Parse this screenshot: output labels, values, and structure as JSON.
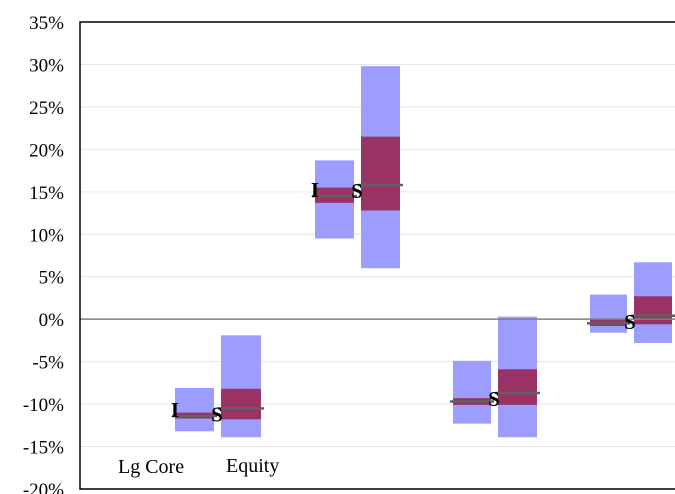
{
  "chart_data": {
    "type": "box",
    "title": "",
    "xlabel": "",
    "ylabel": "",
    "ylim": [
      -0.2,
      0.35
    ],
    "y_ticks": [
      "35%",
      "30%",
      "25%",
      "20%",
      "15%",
      "10%",
      "5%",
      "0%",
      "-5%",
      "-10%",
      "-15%",
      "-20%"
    ],
    "y_tick_values": [
      0.35,
      0.3,
      0.25,
      0.2,
      0.15,
      0.1,
      0.05,
      0.0,
      -0.05,
      -0.1,
      -0.15,
      -0.2
    ],
    "grid": true,
    "annotations": [
      "Lg Core",
      "Equity"
    ],
    "colors": {
      "outer": "#9d9dff",
      "inner": "#993366",
      "median": "#606060",
      "zero": "#808080"
    },
    "groups": [
      {
        "boxes": [
          {
            "outer": [
              -0.132,
              -0.081
            ],
            "inner": [
              -0.117,
              -0.11
            ],
            "median": -0.114,
            "marker": "I"
          },
          {
            "outer": [
              -0.139,
              -0.019
            ],
            "inner": [
              -0.118,
              -0.082
            ],
            "median": -0.105,
            "marker": "S"
          }
        ]
      },
      {
        "boxes": [
          {
            "outer": [
              0.095,
              0.187
            ],
            "inner": [
              0.137,
              0.155
            ],
            "median": 0.145,
            "marker": "I"
          },
          {
            "outer": [
              0.06,
              0.298
            ],
            "inner": [
              0.128,
              0.215
            ],
            "median": 0.158,
            "marker": "S"
          }
        ]
      },
      {
        "boxes": [
          {
            "outer": [
              -0.123,
              -0.049
            ],
            "inner": [
              -0.101,
              -0.093
            ],
            "median": -0.097,
            "marker": ""
          },
          {
            "outer": [
              -0.139,
              0.003
            ],
            "inner": [
              -0.101,
              -0.059
            ],
            "median": -0.087,
            "marker": "S"
          }
        ]
      },
      {
        "boxes": [
          {
            "outer": [
              -0.016,
              0.029
            ],
            "inner": [
              -0.008,
              0.0
            ],
            "median": -0.005,
            "marker": ""
          },
          {
            "outer": [
              -0.028,
              0.067
            ],
            "inner": [
              -0.006,
              0.027
            ],
            "median": 0.004,
            "marker": "S"
          }
        ]
      }
    ]
  }
}
